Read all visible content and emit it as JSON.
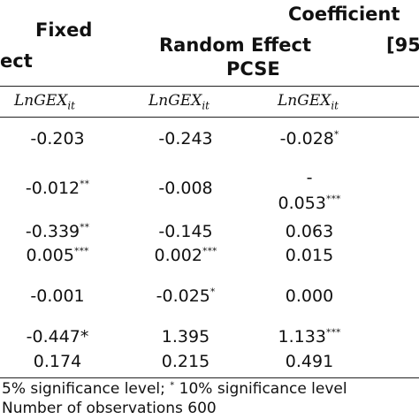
{
  "header": {
    "coefficient": "Coefficient",
    "fixed": "Fixed",
    "effect_tail": "ect",
    "random_effect": "Random Effect",
    "bracket": "[95",
    "pcse": "PCSE"
  },
  "dep_var": {
    "base": "LnGEX",
    "sub": "it"
  },
  "rows": [
    {
      "c1": "-0.203",
      "c1s": "",
      "c2": "-0.243",
      "c2s": "",
      "c3": "-0.028",
      "c3s": "*"
    },
    {
      "c1": "-0.012",
      "c1s": "**",
      "c2": "-0.008",
      "c2s": "",
      "c3a": "-",
      "c3": "0.053",
      "c3s": "***"
    },
    {
      "c1": "-0.339",
      "c1s": "**",
      "c2": "-0.145",
      "c2s": "",
      "c3": "0.063",
      "c3s": ""
    },
    {
      "c1": "0.005",
      "c1s": "***",
      "c2": "0.002",
      "c2s": "***",
      "c3": "0.015",
      "c3s": ""
    },
    {
      "c1": "-0.001",
      "c1s": "",
      "c2": "-0.025",
      "c2s": "*",
      "c3": "0.000",
      "c3s": ""
    },
    {
      "c1": "-0.447*",
      "c1s": "",
      "c2": "1.395",
      "c2s": "",
      "c3": "1.133",
      "c3s": "***"
    },
    {
      "c1": "0.174",
      "c1s": "",
      "c2": "0.215",
      "c2s": "",
      "c3": "0.491",
      "c3s": ""
    }
  ],
  "notes": {
    "line1_a": "5% significance level;",
    "line1_star": "*",
    "line1_b": "10% significance level",
    "line2": "Number of observations 600"
  }
}
